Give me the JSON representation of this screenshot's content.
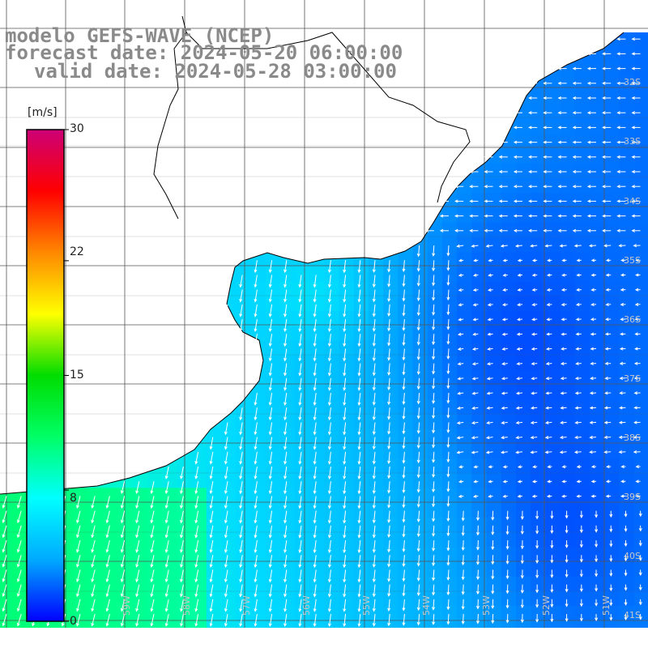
{
  "title": {
    "model": "modelo GEFS-WAVE (NCEP)",
    "forecast": "forecast date: 2024-05-20 06:00:00",
    "valid": "valid date: 2024-05-28 03:00:00"
  },
  "colorbar": {
    "unit": "[m/s]",
    "min": 0,
    "max": 30,
    "ticks": [
      "30",
      "22",
      "15",
      "8",
      "0"
    ],
    "tick_values": [
      30,
      22,
      15,
      8,
      0
    ],
    "colors": [
      "#0000ff",
      "#00aaff",
      "#00ffff",
      "#00ff66",
      "#00dd00",
      "#ffff00",
      "#ff8800",
      "#ff0000",
      "#cc0077"
    ]
  },
  "map": {
    "lat_labels": [
      "32S",
      "33S",
      "34S",
      "35S",
      "36S",
      "37S",
      "38S",
      "39S",
      "40S",
      "41S"
    ],
    "lon_labels": [
      "59W",
      "58W",
      "57W",
      "56W",
      "55W",
      "54W",
      "53W",
      "52W",
      "51W"
    ],
    "land_color": "#ffffff",
    "grid_color": "#555555",
    "coast_color": "#000000",
    "vector_color": "#ffffff"
  }
}
